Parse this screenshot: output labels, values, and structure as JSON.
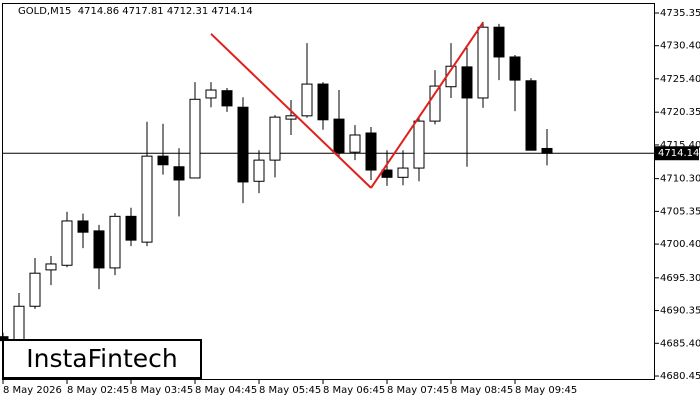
{
  "chart_data": {
    "type": "candlestick",
    "header": "GOLD,M15  4714.86 4717.81 4712.31 4714.14",
    "watermark": "InstaFintech",
    "categories": [
      "8 May 2026",
      null,
      null,
      null,
      "8 May 02:45",
      null,
      null,
      null,
      "8 May 03:45",
      null,
      null,
      null,
      "8 May 04:45",
      null,
      null,
      null,
      "8 May 05:45",
      null,
      null,
      null,
      "8 May 06:45",
      null,
      null,
      null,
      "8 May 07:45",
      null,
      null,
      null,
      "8 May 08:45",
      null,
      null,
      null,
      "8 May 09:45",
      null,
      null
    ],
    "open": [
      4686.4,
      4685.3,
      4691.0,
      4696.5,
      4697.2,
      4703.9,
      4702.4,
      4696.8,
      4704.6,
      4700.7,
      4713.7,
      4712.1,
      4710.4,
      4722.5,
      4723.6,
      4721.1,
      4709.9,
      4713.1,
      4719.3,
      4719.8,
      4724.6,
      4719.3,
      4714.3,
      4717.2,
      4711.6,
      4710.5,
      4711.9,
      4719.0,
      4724.2,
      4727.2,
      4722.5,
      4733.2,
      4728.7,
      4725.1,
      4714.86
    ],
    "high": [
      4687.0,
      4693.0,
      4698.3,
      4698.6,
      4705.3,
      4705.0,
      4703.3,
      4705.1,
      4705.9,
      4718.9,
      4718.6,
      4714.9,
      4724.9,
      4724.9,
      4724.0,
      4722.6,
      4714.6,
      4719.9,
      4722.2,
      4730.8,
      4724.9,
      4723.7,
      4718.4,
      4718.1,
      4714.6,
      4714.6,
      4719.5,
      4726.7,
      4730.8,
      4730.1,
      4734.0,
      4733.7,
      4729.0,
      4725.5,
      4717.81
    ],
    "low": [
      4685.2,
      4684.5,
      4690.6,
      4694.2,
      4696.9,
      4699.8,
      4693.6,
      4695.7,
      4700.1,
      4700.1,
      4710.9,
      4704.6,
      4710.4,
      4721.1,
      4720.4,
      4706.6,
      4708.1,
      4710.5,
      4716.9,
      4719.5,
      4717.7,
      4713.4,
      4713.1,
      4710.1,
      4709.2,
      4709.3,
      4709.9,
      4718.5,
      4722.5,
      4712.1,
      4721.0,
      4725.2,
      4720.5,
      4714.6,
      4712.31
    ],
    "close": [
      4685.8,
      4691.0,
      4696.0,
      4697.4,
      4703.9,
      4702.2,
      4696.8,
      4704.6,
      4701.0,
      4713.7,
      4712.4,
      4710.1,
      4722.3,
      4723.7,
      4721.3,
      4709.8,
      4713.1,
      4719.6,
      4719.8,
      4724.6,
      4719.2,
      4714.2,
      4716.9,
      4711.6,
      4710.5,
      4711.9,
      4719.0,
      4724.3,
      4727.3,
      4722.5,
      4733.2,
      4728.7,
      4725.2,
      4714.6,
      4714.14
    ],
    "up_color": "#ffffff",
    "down_color": "#000000",
    "outline_color": "#000000",
    "current_price": 4714.14,
    "pattern": {
      "color": "#e0201c",
      "points": [
        [
          13,
          4732.2
        ],
        [
          23,
          4708.9
        ],
        [
          30,
          4733.9
        ]
      ]
    },
    "ylim": [
      4679.85,
      4736.86
    ],
    "yticks": [
      4735.35,
      {
        "value": 4730.4,
        "label": "4730.40"
      },
      {
        "value": 4725.4,
        "label": "4725.40"
      },
      4720.35,
      {
        "value": 4715.4,
        "label": "4715.40"
      },
      {
        "value": 4710.3,
        "label": "4710.30"
      },
      4705.35,
      {
        "value": 4700.4,
        "label": "4700.40"
      },
      {
        "value": 4695.3,
        "label": "4695.30"
      },
      4690.35,
      {
        "value": 4685.4,
        "label": "4685.40"
      },
      4680.45
    ]
  }
}
